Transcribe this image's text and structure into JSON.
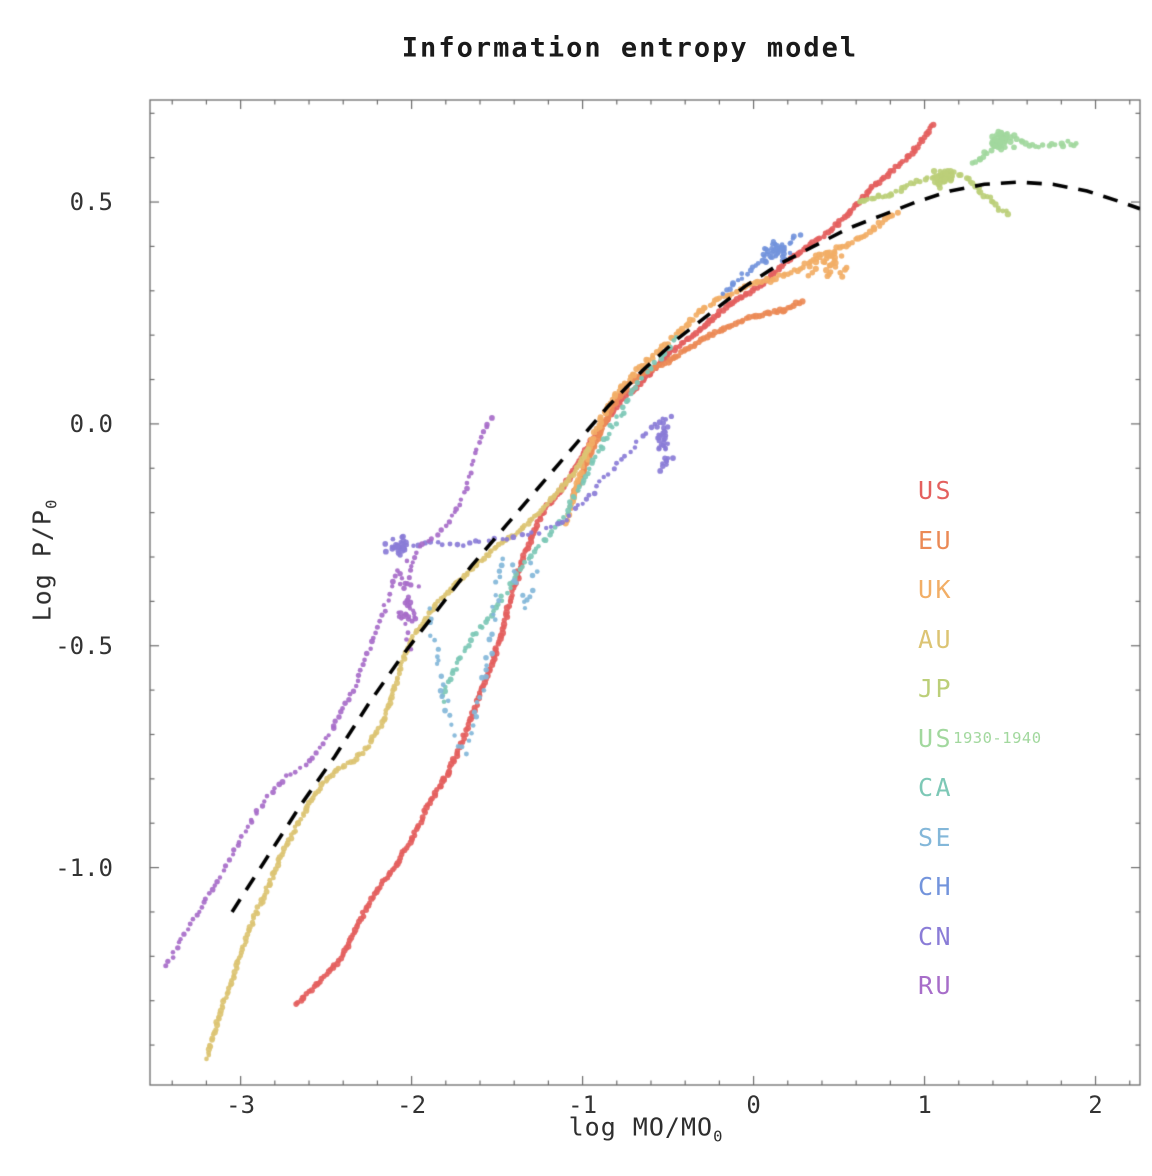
{
  "chart_data": {
    "type": "scatter",
    "title": "Information entropy model",
    "xlabel": {
      "main": "log MO/MO",
      "sub": "0"
    },
    "ylabel": {
      "main": "Log P/P",
      "sub": "0"
    },
    "xlim": [
      -3.53,
      2.26
    ],
    "ylim": [
      -1.49,
      0.73
    ],
    "grid": false,
    "frame_color": "#6b6b6b",
    "xticks": [
      {
        "v": -3,
        "label": "-3"
      },
      {
        "v": -2,
        "label": "-2"
      },
      {
        "v": -1,
        "label": "-1"
      },
      {
        "v": 0,
        "label": "0"
      },
      {
        "v": 1,
        "label": "1"
      },
      {
        "v": 2,
        "label": "2"
      }
    ],
    "yticks": [
      {
        "v": 0.5,
        "label": "0.5"
      },
      {
        "v": 0.0,
        "label": "0.0"
      },
      {
        "v": -0.5,
        "label": "-0.5"
      },
      {
        "v": -1.0,
        "label": "-1.0"
      }
    ],
    "minor_ticks": {
      "x_step": 0.2,
      "y_step": 0.1
    },
    "model_curve": {
      "name": "model",
      "style": "dashed",
      "color": "#000000",
      "points": [
        [
          -3.05,
          -1.1
        ],
        [
          -2.85,
          -0.98
        ],
        [
          -2.65,
          -0.86
        ],
        [
          -2.45,
          -0.75
        ],
        [
          -2.25,
          -0.63
        ],
        [
          -2.05,
          -0.52
        ],
        [
          -1.85,
          -0.42
        ],
        [
          -1.65,
          -0.32
        ],
        [
          -1.45,
          -0.23
        ],
        [
          -1.25,
          -0.14
        ],
        [
          -1.05,
          -0.05
        ],
        [
          -0.85,
          0.04
        ],
        [
          -0.65,
          0.12
        ],
        [
          -0.45,
          0.19
        ],
        [
          -0.25,
          0.25
        ],
        [
          -0.05,
          0.31
        ],
        [
          0.15,
          0.36
        ],
        [
          0.35,
          0.4
        ],
        [
          0.55,
          0.44
        ],
        [
          0.75,
          0.47
        ],
        [
          0.95,
          0.5
        ],
        [
          1.15,
          0.525
        ],
        [
          1.35,
          0.54
        ],
        [
          1.55,
          0.545
        ],
        [
          1.75,
          0.54
        ],
        [
          1.95,
          0.525
        ],
        [
          2.15,
          0.5
        ],
        [
          2.26,
          0.485
        ]
      ]
    },
    "series": [
      {
        "name": "US",
        "color": "#e4605e",
        "spacing": 3,
        "jitter": 1.2,
        "r": 2.9,
        "points": [
          [
            -2.68,
            -1.31
          ],
          [
            -2.55,
            -1.26
          ],
          [
            -2.42,
            -1.21
          ],
          [
            -2.33,
            -1.14
          ],
          [
            -2.22,
            -1.06
          ],
          [
            -2.1,
            -1.0
          ],
          [
            -2.0,
            -0.94
          ],
          [
            -1.9,
            -0.86
          ],
          [
            -1.78,
            -0.78
          ],
          [
            -1.7,
            -0.71
          ],
          [
            -1.61,
            -0.62
          ],
          [
            -1.52,
            -0.53
          ],
          [
            -1.46,
            -0.45
          ],
          [
            -1.4,
            -0.37
          ],
          [
            -1.34,
            -0.29
          ],
          [
            -1.28,
            -0.24
          ],
          [
            -1.22,
            -0.19
          ],
          [
            -1.15,
            -0.16
          ],
          [
            -1.09,
            -0.13
          ],
          [
            -1.0,
            -0.07
          ],
          [
            -0.9,
            -0.01
          ],
          [
            -0.78,
            0.05
          ],
          [
            -0.64,
            0.1
          ],
          [
            -0.49,
            0.16
          ],
          [
            -0.32,
            0.21
          ],
          [
            -0.14,
            0.27
          ],
          [
            0.04,
            0.31
          ],
          [
            0.21,
            0.37
          ],
          [
            0.39,
            0.42
          ],
          [
            0.52,
            0.46
          ],
          [
            0.62,
            0.5
          ],
          [
            0.68,
            0.53
          ],
          [
            0.78,
            0.56
          ],
          [
            0.9,
            0.6
          ],
          [
            0.97,
            0.63
          ],
          [
            1.02,
            0.66
          ],
          [
            1.06,
            0.68
          ]
        ]
      },
      {
        "name": "EU",
        "color": "#eb8a56",
        "spacing": 3,
        "jitter": 1.0,
        "r": 3.0,
        "points": [
          [
            -1.05,
            -0.16
          ],
          [
            -0.97,
            -0.08
          ],
          [
            -0.9,
            -0.02
          ],
          [
            -0.82,
            0.04
          ],
          [
            -0.73,
            0.09
          ],
          [
            -0.62,
            0.12
          ],
          [
            -0.5,
            0.14
          ],
          [
            -0.38,
            0.17
          ],
          [
            -0.26,
            0.2
          ],
          [
            -0.14,
            0.22
          ],
          [
            -0.02,
            0.24
          ],
          [
            0.1,
            0.25
          ],
          [
            0.2,
            0.26
          ],
          [
            0.3,
            0.28
          ]
        ]
      },
      {
        "name": "UK",
        "color": "#f2ae66",
        "spacing": 3.2,
        "jitter": 1.7,
        "r": 2.9,
        "points": [
          [
            -1.1,
            -0.22
          ],
          [
            -1.02,
            -0.12
          ],
          [
            -0.95,
            -0.04
          ],
          [
            -0.87,
            0.03
          ],
          [
            -0.78,
            0.08
          ],
          [
            -0.68,
            0.12
          ],
          [
            -0.57,
            0.16
          ],
          [
            -0.45,
            0.2
          ],
          [
            -0.33,
            0.25
          ],
          [
            -0.21,
            0.28
          ],
          [
            -0.09,
            0.3
          ],
          [
            0.03,
            0.32
          ],
          [
            0.15,
            0.33
          ],
          [
            0.27,
            0.35
          ],
          [
            0.4,
            0.38
          ],
          [
            0.52,
            0.4
          ],
          [
            0.63,
            0.42
          ],
          [
            0.74,
            0.45
          ],
          [
            0.85,
            0.48
          ]
        ],
        "clusters": [
          {
            "x": 0.42,
            "y": 0.36,
            "n": 30,
            "rx": 0.12,
            "ry": 0.03
          }
        ]
      },
      {
        "name": "AU",
        "color": "#dcc473",
        "spacing": 3,
        "jitter": 1.2,
        "r": 2.7,
        "points": [
          [
            -3.2,
            -1.43
          ],
          [
            -3.12,
            -1.33
          ],
          [
            -3.04,
            -1.24
          ],
          [
            -2.95,
            -1.14
          ],
          [
            -2.86,
            -1.06
          ],
          [
            -2.76,
            -0.97
          ],
          [
            -2.65,
            -0.89
          ],
          [
            -2.54,
            -0.82
          ],
          [
            -2.44,
            -0.78
          ],
          [
            -2.34,
            -0.76
          ],
          [
            -2.26,
            -0.73
          ],
          [
            -2.18,
            -0.68
          ],
          [
            -2.11,
            -0.61
          ],
          [
            -2.05,
            -0.53
          ],
          [
            -1.99,
            -0.48
          ],
          [
            -1.92,
            -0.44
          ],
          [
            -1.84,
            -0.4
          ],
          [
            -1.74,
            -0.36
          ],
          [
            -1.63,
            -0.32
          ],
          [
            -1.52,
            -0.28
          ],
          [
            -1.4,
            -0.25
          ],
          [
            -1.28,
            -0.21
          ],
          [
            -1.16,
            -0.16
          ],
          [
            -1.05,
            -0.11
          ],
          [
            -0.96,
            -0.05
          ]
        ]
      },
      {
        "name": "JP",
        "color": "#bccf79",
        "spacing": 3.2,
        "jitter": 1.8,
        "r": 2.8,
        "points": [
          [
            0.62,
            0.5
          ],
          [
            0.72,
            0.51
          ],
          [
            0.82,
            0.52
          ],
          [
            0.92,
            0.54
          ],
          [
            1.0,
            0.55
          ],
          [
            1.08,
            0.56
          ],
          [
            1.16,
            0.565
          ],
          [
            1.24,
            0.555
          ],
          [
            1.31,
            0.53
          ],
          [
            1.38,
            0.51
          ],
          [
            1.44,
            0.485
          ],
          [
            1.5,
            0.465
          ]
        ],
        "clusters": [
          {
            "x": 1.12,
            "y": 0.555,
            "n": 40,
            "rx": 0.05,
            "ry": 0.015
          }
        ]
      },
      {
        "name": "US 1930-1940",
        "color": "#a2d89e",
        "spacing": 3.5,
        "jitter": 2.2,
        "r": 2.8,
        "points": [
          [
            1.28,
            0.585
          ],
          [
            1.35,
            0.6
          ],
          [
            1.41,
            0.625
          ],
          [
            1.46,
            0.645
          ],
          [
            1.52,
            0.65
          ],
          [
            1.58,
            0.635
          ],
          [
            1.65,
            0.625
          ],
          [
            1.72,
            0.625
          ],
          [
            1.79,
            0.63
          ],
          [
            1.86,
            0.635
          ],
          [
            1.91,
            0.63
          ]
        ],
        "clusters": [
          {
            "x": 1.45,
            "y": 0.64,
            "n": 45,
            "rx": 0.05,
            "ry": 0.018
          }
        ]
      },
      {
        "name": "CA",
        "color": "#7dc8b6",
        "spacing": 4.5,
        "jitter": 2.2,
        "r": 2.6,
        "points": [
          [
            -1.82,
            -0.62
          ],
          [
            -1.72,
            -0.53
          ],
          [
            -1.62,
            -0.47
          ],
          [
            -1.52,
            -0.42
          ],
          [
            -1.43,
            -0.37
          ],
          [
            -1.35,
            -0.32
          ],
          [
            -1.27,
            -0.28
          ],
          [
            -1.19,
            -0.25
          ],
          [
            -1.11,
            -0.21
          ],
          [
            -1.03,
            -0.15
          ],
          [
            -0.95,
            -0.09
          ],
          [
            -0.86,
            -0.03
          ],
          [
            -0.77,
            0.03
          ],
          [
            -0.68,
            0.09
          ],
          [
            -0.59,
            0.13
          ],
          [
            -0.5,
            0.17
          ],
          [
            -0.43,
            0.2
          ]
        ]
      },
      {
        "name": "SE",
        "color": "#83b7d9",
        "spacing": 8,
        "jitter": 4,
        "r": 2.5,
        "points": [
          [
            -1.9,
            -0.42
          ],
          [
            -1.86,
            -0.5
          ],
          [
            -1.82,
            -0.58
          ],
          [
            -1.78,
            -0.66
          ],
          [
            -1.73,
            -0.72
          ],
          [
            -1.68,
            -0.74
          ],
          [
            -1.63,
            -0.68
          ],
          [
            -1.59,
            -0.6
          ],
          [
            -1.55,
            -0.52
          ],
          [
            -1.52,
            -0.45
          ],
          [
            -1.5,
            -0.38
          ],
          [
            -1.48,
            -0.33
          ],
          [
            -1.45,
            -0.3
          ],
          [
            -1.4,
            -0.33
          ],
          [
            -1.36,
            -0.38
          ],
          [
            -1.32,
            -0.42
          ],
          [
            -1.3,
            -0.35
          ],
          [
            -1.28,
            -0.3
          ]
        ]
      },
      {
        "name": "CH",
        "color": "#7394dc",
        "spacing": 4,
        "jitter": 3,
        "r": 2.6,
        "points": [
          [
            -0.17,
            0.29
          ],
          [
            -0.09,
            0.32
          ],
          [
            -0.01,
            0.35
          ],
          [
            0.07,
            0.37
          ],
          [
            0.14,
            0.39
          ],
          [
            0.21,
            0.41
          ],
          [
            0.28,
            0.43
          ]
        ],
        "clusters": [
          {
            "x": 0.13,
            "y": 0.39,
            "n": 35,
            "rx": 0.07,
            "ry": 0.02
          }
        ]
      },
      {
        "name": "CN",
        "color": "#8a7cd7",
        "spacing": 6,
        "jitter": 2,
        "r": 2.5,
        "points": [
          [
            -2.15,
            -0.285
          ],
          [
            -2.0,
            -0.275
          ],
          [
            -1.85,
            -0.27
          ],
          [
            -1.7,
            -0.27
          ],
          [
            -1.55,
            -0.26
          ],
          [
            -1.4,
            -0.255
          ],
          [
            -1.25,
            -0.245
          ],
          [
            -1.12,
            -0.22
          ],
          [
            -1.0,
            -0.18
          ],
          [
            -0.9,
            -0.13
          ],
          [
            -0.8,
            -0.09
          ],
          [
            -0.7,
            -0.05
          ],
          [
            -0.6,
            -0.01
          ],
          [
            -0.52,
            0.01
          ],
          [
            -0.45,
            0.02
          ]
        ],
        "clusters": [
          {
            "x": -0.52,
            "y": -0.04,
            "n": 35,
            "rx": 0.04,
            "ry": 0.05
          },
          {
            "x": -2.08,
            "y": -0.28,
            "n": 25,
            "rx": 0.05,
            "ry": 0.02
          }
        ]
      },
      {
        "name": "RU",
        "color": "#a76dc9",
        "spacing": 5.5,
        "jitter": 1.6,
        "r": 2.5,
        "points": [
          [
            -3.44,
            -1.22
          ],
          [
            -3.36,
            -1.17
          ],
          [
            -3.28,
            -1.12
          ],
          [
            -3.2,
            -1.07
          ],
          [
            -3.12,
            -1.02
          ],
          [
            -3.04,
            -0.96
          ],
          [
            -2.96,
            -0.91
          ],
          [
            -2.88,
            -0.86
          ],
          [
            -2.8,
            -0.82
          ],
          [
            -2.71,
            -0.79
          ],
          [
            -2.62,
            -0.77
          ],
          [
            -2.54,
            -0.73
          ],
          [
            -2.47,
            -0.69
          ],
          [
            -2.4,
            -0.64
          ],
          [
            -2.33,
            -0.59
          ],
          [
            -2.27,
            -0.53
          ],
          [
            -2.21,
            -0.47
          ],
          [
            -2.16,
            -0.42
          ],
          [
            -2.12,
            -0.37
          ],
          [
            -2.08,
            -0.33
          ],
          [
            -2.03,
            -0.37
          ],
          [
            -1.99,
            -0.31
          ],
          [
            -1.94,
            -0.27
          ],
          [
            -1.88,
            -0.26
          ],
          [
            -1.82,
            -0.24
          ],
          [
            -1.76,
            -0.21
          ],
          [
            -1.71,
            -0.17
          ],
          [
            -1.67,
            -0.12
          ],
          [
            -1.63,
            -0.07
          ],
          [
            -1.59,
            -0.03
          ],
          [
            -1.55,
            0.0
          ],
          [
            -1.51,
            0.02
          ]
        ],
        "clusters": [
          {
            "x": -2.02,
            "y": -0.42,
            "n": 30,
            "rx": 0.05,
            "ry": 0.08
          }
        ]
      }
    ],
    "legend": {
      "position": "right-middle",
      "items": [
        {
          "label": "US",
          "sub": "",
          "color": "#e4605e"
        },
        {
          "label": "EU",
          "sub": "",
          "color": "#eb8a56"
        },
        {
          "label": "UK",
          "sub": "",
          "color": "#f2ae66"
        },
        {
          "label": "AU",
          "sub": "",
          "color": "#dcc473"
        },
        {
          "label": "JP",
          "sub": "",
          "color": "#bccf79"
        },
        {
          "label": "US",
          "sub": "1930-1940",
          "color": "#a2d89e"
        },
        {
          "label": "CA",
          "sub": "",
          "color": "#7dc8b6"
        },
        {
          "label": "SE",
          "sub": "",
          "color": "#83b7d9"
        },
        {
          "label": "CH",
          "sub": "",
          "color": "#7394dc"
        },
        {
          "label": "CN",
          "sub": "",
          "color": "#8a7cd7"
        },
        {
          "label": "RU",
          "sub": "",
          "color": "#a76dc9"
        }
      ]
    }
  }
}
